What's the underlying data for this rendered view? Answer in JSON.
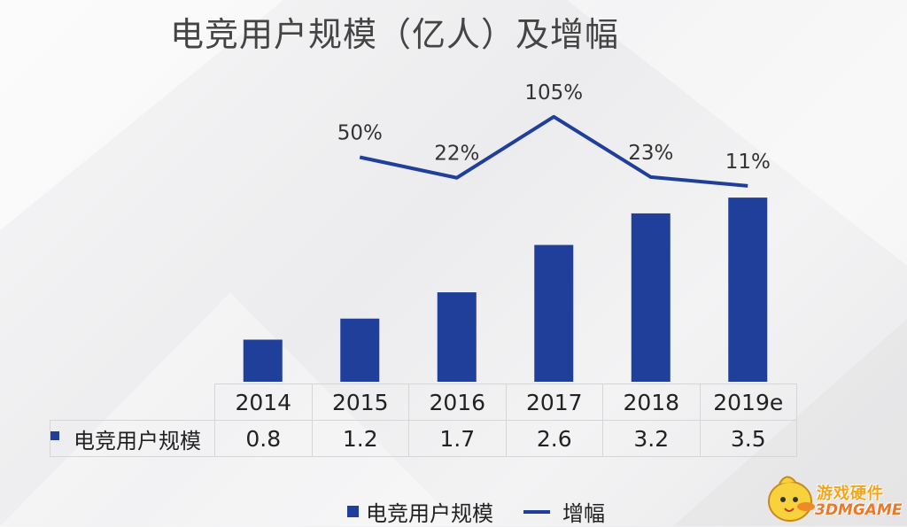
{
  "title": "电竞用户规模（亿人）及增幅",
  "chart_data": {
    "type": "bar",
    "categories": [
      "2014",
      "2015",
      "2016",
      "2017",
      "2018",
      "2019e"
    ],
    "series": [
      {
        "name": "电竞用户规模",
        "type": "bar",
        "values": [
          0.8,
          1.2,
          1.7,
          2.6,
          3.2,
          3.5
        ],
        "color": "#1f3f9a"
      },
      {
        "name": "增幅",
        "type": "line",
        "values": [
          null,
          50,
          22,
          105,
          23,
          11
        ],
        "labels": [
          "",
          "50%",
          "22%",
          "105%",
          "23%",
          "11%"
        ],
        "color": "#1f3f9a"
      }
    ],
    "data_table": {
      "row_label": "电竞用户规模",
      "values": [
        "0.8",
        "1.2",
        "1.7",
        "2.6",
        "3.2",
        "3.5"
      ]
    },
    "legend": {
      "position": "bottom",
      "items": [
        "电竞用户规模",
        "增幅"
      ]
    },
    "grid": false
  },
  "watermark": {
    "line1": "游戏硬件",
    "line2": "3DMGAME"
  }
}
